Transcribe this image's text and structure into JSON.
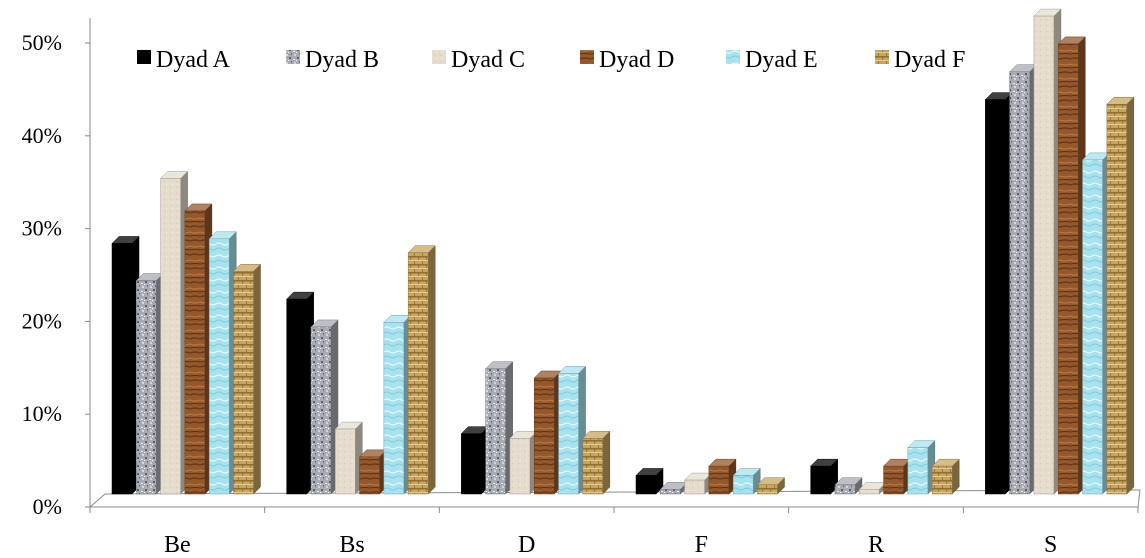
{
  "chart_data": {
    "type": "bar",
    "title": "",
    "xlabel": "",
    "ylabel": "",
    "categories": [
      "Be",
      "Bs",
      "D",
      "F",
      "R",
      "S"
    ],
    "y_ticks": [
      "0%",
      "10%",
      "20%",
      "30%",
      "40%",
      "50%"
    ],
    "ylim": [
      0,
      50
    ],
    "grid": false,
    "three_d": true,
    "legend_position": "top-left",
    "series": [
      {
        "name": "Dyad A",
        "color": "#000000",
        "fill": "solid-black",
        "values": [
          27,
          21,
          6.5,
          2,
          3,
          42.5
        ]
      },
      {
        "name": "Dyad B",
        "color": "#a9abb4",
        "fill": "granite",
        "values": [
          23,
          18,
          13.5,
          0.5,
          1,
          45.5
        ]
      },
      {
        "name": "Dyad C",
        "color": "#e6dccd",
        "fill": "sand",
        "values": [
          34,
          7,
          6,
          1.5,
          0.5,
          51.5
        ]
      },
      {
        "name": "Dyad D",
        "color": "#94582d",
        "fill": "wood",
        "values": [
          30.5,
          4,
          12.5,
          3,
          3,
          48.5
        ]
      },
      {
        "name": "Dyad E",
        "color": "#a8e2ee",
        "fill": "water",
        "values": [
          27.5,
          18.5,
          13,
          2,
          5,
          36
        ]
      },
      {
        "name": "Dyad F",
        "color": "#c7a561",
        "fill": "woven",
        "values": [
          24,
          26,
          6,
          1,
          3,
          42
        ]
      }
    ]
  }
}
